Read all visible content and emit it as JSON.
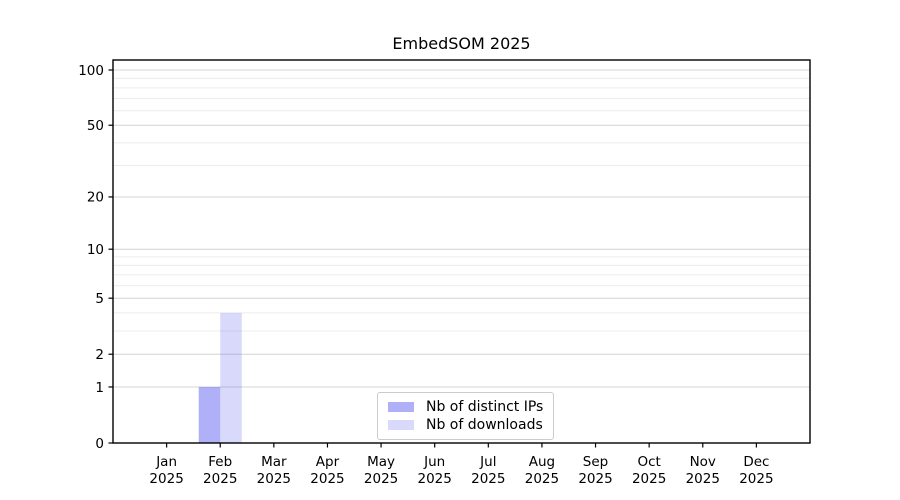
{
  "title": "EmbedSOM 2025",
  "colors": {
    "background": "#ffffff",
    "axis": "#000000",
    "text": "#000000",
    "major_grid": "#d4d4d4",
    "minor_grid": "#ececec",
    "legend_border": "#cccccc"
  },
  "chart_data": {
    "type": "bar",
    "title": "EmbedSOM 2025",
    "categories": [
      "Jan 2025",
      "Feb 2025",
      "Mar 2025",
      "Apr 2025",
      "May 2025",
      "Jun 2025",
      "Jul 2025",
      "Aug 2025",
      "Sep 2025",
      "Oct 2025",
      "Nov 2025",
      "Dec 2025"
    ],
    "x_tick_line1": [
      "Jan",
      "Feb",
      "Mar",
      "Apr",
      "May",
      "Jun",
      "Jul",
      "Aug",
      "Sep",
      "Oct",
      "Nov",
      "Dec"
    ],
    "x_tick_line2": [
      "2025",
      "2025",
      "2025",
      "2025",
      "2025",
      "2025",
      "2025",
      "2025",
      "2025",
      "2025",
      "2025",
      "2025"
    ],
    "series": [
      {
        "name": "Nb of distinct IPs",
        "color": "rgba(80,80,240,0.45)",
        "values": [
          0,
          1,
          0,
          0,
          0,
          0,
          0,
          0,
          0,
          0,
          0,
          0
        ]
      },
      {
        "name": "Nb of downloads",
        "color": "rgba(80,80,240,0.22)",
        "values": [
          0,
          4,
          0,
          0,
          0,
          0,
          0,
          0,
          0,
          0,
          0,
          0
        ]
      }
    ],
    "xlabel": "",
    "ylabel": "",
    "yscale": "log1p",
    "ylim": [
      0,
      114
    ],
    "yticks": [
      0,
      1,
      2,
      5,
      10,
      20,
      50,
      100
    ],
    "minor_yticks": [
      3,
      4,
      6,
      7,
      8,
      9,
      30,
      40,
      60,
      70,
      80,
      90
    ],
    "grid": "horizontal, major and minor",
    "legend_position": "lower center"
  }
}
